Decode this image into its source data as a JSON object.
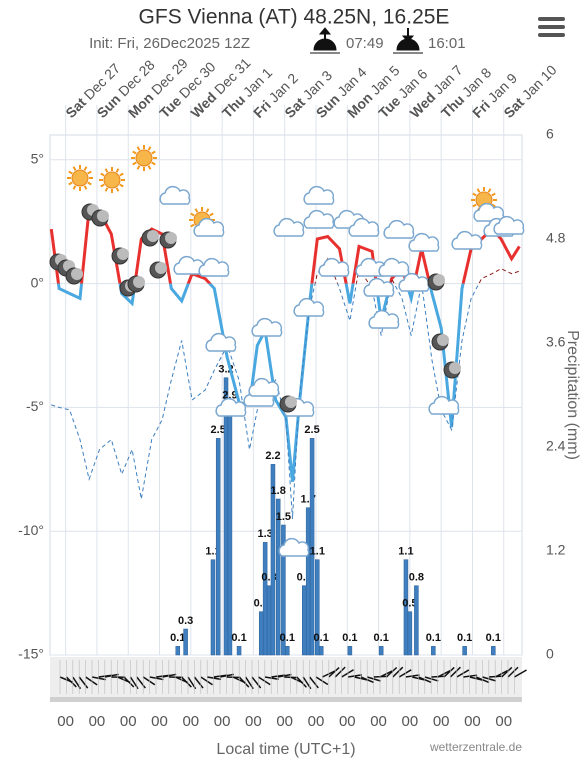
{
  "chart_data": {
    "type": "meteogram",
    "title": "GFS Vienna (AT) 48.25N, 16.25E",
    "subtitle": "Init: Fri, 26Dec2025 12Z",
    "sunrise": "07:49",
    "sunset": "16:01",
    "days": [
      {
        "weekday": "Sat",
        "date": "Dec 27"
      },
      {
        "weekday": "Sun",
        "date": "Dec 28"
      },
      {
        "weekday": "Mon",
        "date": "Dec 29"
      },
      {
        "weekday": "Tue",
        "date": "Dec 30"
      },
      {
        "weekday": "Wed",
        "date": "Dec 31"
      },
      {
        "weekday": "Thu",
        "date": "Jan 1"
      },
      {
        "weekday": "Fri",
        "date": "Jan 2"
      },
      {
        "weekday": "Sat",
        "date": "Jan 3"
      },
      {
        "weekday": "Sun",
        "date": "Jan 4"
      },
      {
        "weekday": "Mon",
        "date": "Jan 5"
      },
      {
        "weekday": "Tue",
        "date": "Jan 6"
      },
      {
        "weekday": "Wed",
        "date": "Jan 7"
      },
      {
        "weekday": "Thu",
        "date": "Jan 8"
      },
      {
        "weekday": "Fri",
        "date": "Jan 9"
      },
      {
        "weekday": "Sat",
        "date": "Jan 10"
      }
    ],
    "xlim": [
      -12,
      350
    ],
    "xticks": [
      {
        "value": 0,
        "label": "00"
      },
      {
        "value": 24,
        "label": "00"
      },
      {
        "value": 48,
        "label": "00"
      },
      {
        "value": 72,
        "label": "00"
      },
      {
        "value": 96,
        "label": "00"
      },
      {
        "value": 120,
        "label": "00"
      },
      {
        "value": 144,
        "label": "00"
      },
      {
        "value": 168,
        "label": "00"
      },
      {
        "value": 192,
        "label": "00"
      },
      {
        "value": 216,
        "label": "00"
      },
      {
        "value": 240,
        "label": "00"
      },
      {
        "value": 264,
        "label": "00"
      },
      {
        "value": 288,
        "label": "00"
      },
      {
        "value": 312,
        "label": "00"
      },
      {
        "value": 336,
        "label": "00"
      }
    ],
    "xlabel": "Local time (UTC+1)",
    "ylim": [
      -15,
      6
    ],
    "yticks": [
      {
        "value": 5,
        "label": "5°"
      },
      {
        "value": 0,
        "label": "0°"
      },
      {
        "value": -5,
        "label": "-5°"
      },
      {
        "value": -10,
        "label": "-10°"
      },
      {
        "value": -15,
        "label": "-15°"
      }
    ],
    "y2lim": [
      0,
      6
    ],
    "y2ticks": [
      0,
      1.2,
      2.4,
      3.6,
      4.8,
      6
    ],
    "y2label": "Precipitation (mm)",
    "credit": "wetterzentrale.de",
    "grid": true,
    "line_x": [
      -11,
      -5,
      3,
      11,
      18,
      26,
      35,
      43,
      51,
      58,
      66,
      74,
      81,
      89,
      97,
      107,
      114,
      124,
      133,
      141,
      147,
      153,
      161,
      169,
      174,
      179,
      187,
      193,
      201,
      210,
      218,
      225,
      235,
      242,
      250,
      258,
      265,
      273,
      281,
      288,
      296,
      304,
      311,
      319,
      327,
      334,
      342,
      348
    ],
    "series": [
      {
        "warm_color": "#e8312f",
        "cold_color": "#4aa8e0",
        "axis": "y",
        "values": [
          2.2,
          -0.2,
          -0.4,
          -0.6,
          3.0,
          2.9,
          2.0,
          -0.4,
          -0.8,
          1.8,
          2.2,
          2.0,
          -0.2,
          -0.7,
          0.4,
          0.2,
          -0.2,
          -3.0,
          -4.8,
          -4.9,
          -2.5,
          -1.9,
          -4.7,
          -5.4,
          -8.0,
          -5.0,
          -0.8,
          1.8,
          1.9,
          1.4,
          -0.8,
          1.5,
          1.3,
          -1.5,
          0.2,
          0.6,
          -0.6,
          1.4,
          -0.4,
          -1.8,
          -5.8,
          -0.2,
          1.4,
          1.8,
          2.2,
          1.8,
          1.0,
          1.5
        ]
      },
      {
        "warm_color": "#8b1a1a",
        "cold_color": "#3c7fc0",
        "axis": "y",
        "dashed": true,
        "values": [
          -4.9,
          -5.0,
          -5.1,
          -6.3,
          -7.9,
          -6.7,
          -6.3,
          -7.7,
          -6.7,
          -8.7,
          -6.3,
          -5.5,
          -3.9,
          -2.3,
          -4.7,
          -4.3,
          -3.5,
          -2.5,
          -3.9,
          -6.7,
          -5.1,
          -4.5,
          -3.9,
          -5.5,
          -9.5,
          -4.7,
          -1.0,
          0.4,
          1.0,
          -0.2,
          -1.5,
          0.6,
          -0.2,
          -2.1,
          0.2,
          -0.6,
          -2.1,
          0,
          -3.1,
          -5.1,
          -5.9,
          -2.3,
          -0.6,
          0.2,
          0.4,
          0.6,
          0.4,
          0.5
        ]
      }
    ],
    "precip": {
      "color": "#3f7fbf",
      "axis": "y2",
      "x": [
        86,
        92,
        113,
        117,
        123,
        126,
        133,
        150,
        153,
        156,
        159,
        163,
        167,
        170,
        183,
        186,
        189,
        193,
        196,
        218,
        242,
        261,
        264,
        269,
        282,
        306,
        328
      ],
      "values": [
        0.1,
        0.3,
        1.1,
        2.5,
        3.2,
        2.9,
        0.1,
        0.5,
        1.3,
        0.8,
        2.2,
        1.8,
        1.5,
        0.1,
        0.8,
        1.7,
        2.5,
        1.1,
        0.1,
        0.1,
        0.1,
        1.1,
        0.5,
        0.8,
        0.1,
        0.1,
        0.1
      ]
    }
  }
}
